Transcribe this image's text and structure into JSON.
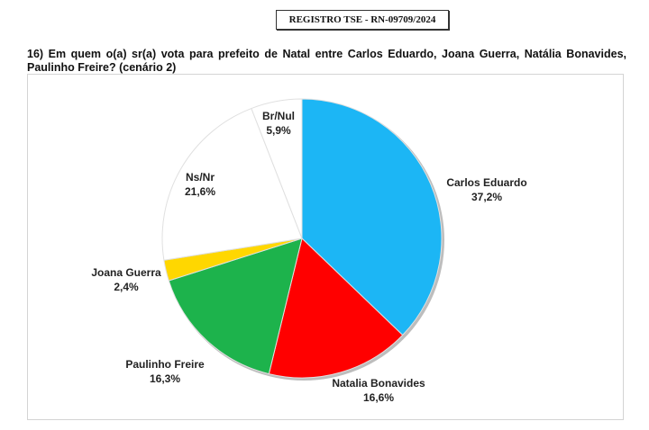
{
  "header": {
    "registro": "REGISTRO TSE - RN-09709/2024"
  },
  "chart_data": {
    "type": "pie",
    "title": "16) Em quem o(a) sr(a) vota para prefeito de Natal entre Carlos Eduardo, Joana Guerra, Natália Bonavides, Paulinho Freire? (cenário 2)",
    "categories": [
      "Carlos Eduardo",
      "Natalia Bonavides",
      "Paulinho Freire",
      "Joana Guerra",
      "Ns/Nr",
      "Br/Nul"
    ],
    "values": [
      37.2,
      16.6,
      16.3,
      2.4,
      21.6,
      5.9
    ],
    "value_labels": [
      "37,2%",
      "16,6%",
      "16,3%",
      "2,4%",
      "21,6%",
      "5,9%"
    ],
    "colors": [
      "#1cb6f5",
      "#ff0000",
      "#1db34c",
      "#ffd700",
      "#ffffff",
      "#ffffff"
    ]
  }
}
